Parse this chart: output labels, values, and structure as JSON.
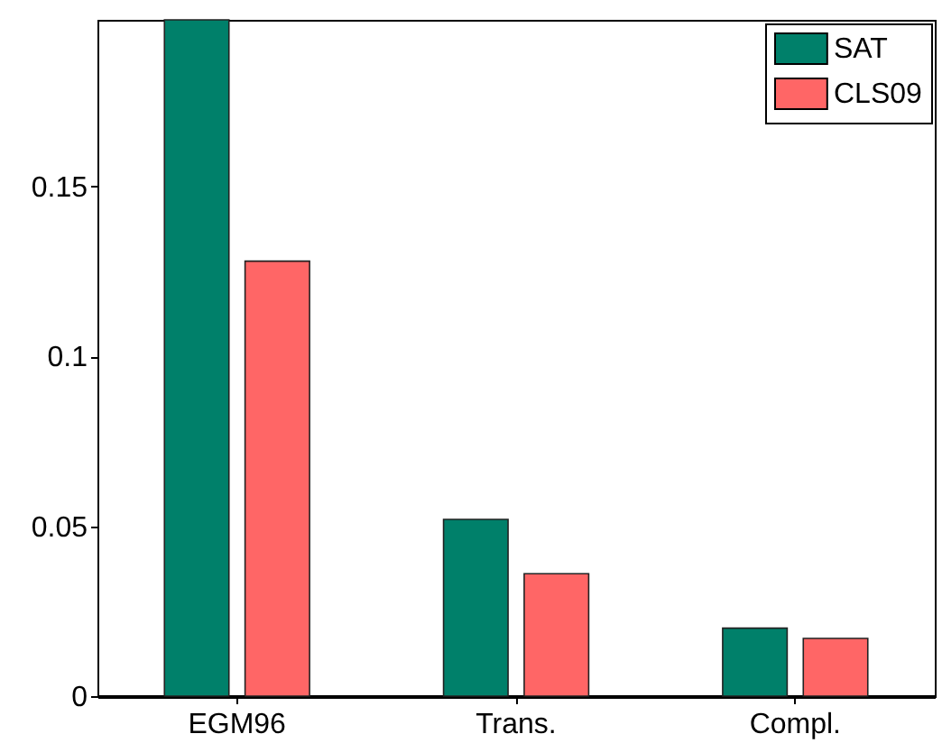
{
  "chart_data": {
    "type": "bar",
    "categories": [
      "EGM96",
      "Trans.",
      "Compl."
    ],
    "series": [
      {
        "name": "SAT",
        "color": "#00806a",
        "values": [
          0.199,
          0.052,
          0.02
        ]
      },
      {
        "name": "CLS09",
        "color": "#ff6666",
        "values": [
          0.128,
          0.036,
          0.017
        ]
      }
    ],
    "ylim": [
      0,
      0.199
    ],
    "yticks": [
      0,
      0.05,
      0.1,
      0.15
    ],
    "legend": "top right"
  }
}
